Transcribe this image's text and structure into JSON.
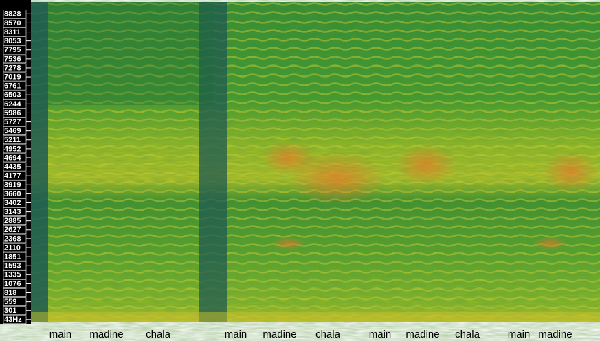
{
  "chart_data": {
    "type": "spectrogram",
    "ylim": [
      0,
      9170
    ],
    "yticks": [
      {
        "value": 43,
        "label": "43Hz"
      },
      301,
      559,
      818,
      1076,
      1335,
      1593,
      1851,
      2110,
      2368,
      2627,
      2885,
      3143,
      3402,
      3660,
      3919,
      4177,
      4435,
      4694,
      4952,
      5211,
      5469,
      5727,
      5986,
      6244,
      6503,
      6761,
      7019,
      7278,
      7536,
      7795,
      8053,
      8311,
      8570,
      8828
    ],
    "words": [
      "main",
      "madine",
      "chala",
      "main",
      "madine",
      "chala",
      "main",
      "madine",
      "chala",
      "main",
      "madine"
    ]
  }
}
